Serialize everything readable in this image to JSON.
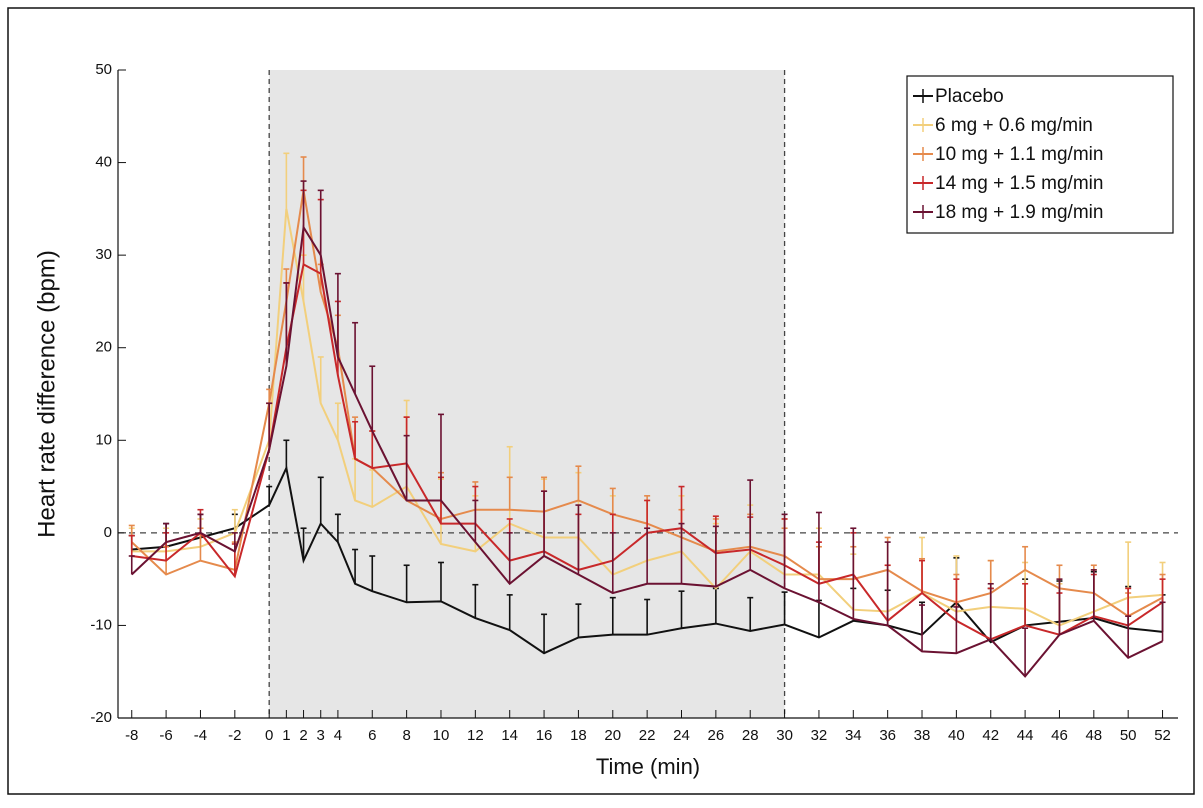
{
  "chart_data": {
    "type": "line",
    "x_label": "Time (min)",
    "y_label": "Heart rate difference (bpm)",
    "x": [
      -8,
      -6,
      -4,
      -2,
      0,
      1,
      2,
      3,
      4,
      5,
      6,
      8,
      10,
      12,
      14,
      16,
      18,
      20,
      22,
      24,
      26,
      28,
      30,
      32,
      34,
      36,
      38,
      40,
      42,
      44,
      46,
      48,
      50,
      52
    ],
    "xlim": [
      -8.8,
      52.9
    ],
    "xticks": [
      -8,
      -6,
      -4,
      -2,
      0,
      1,
      2,
      3,
      4,
      6,
      8,
      10,
      12,
      14,
      16,
      18,
      20,
      22,
      24,
      26,
      28,
      30,
      32,
      34,
      36,
      38,
      40,
      42,
      44,
      46,
      48,
      50,
      52
    ],
    "ylim": [
      -20,
      50
    ],
    "yticks": [
      -20,
      -10,
      0,
      10,
      20,
      30,
      40,
      50
    ],
    "shaded_region": [
      0,
      30
    ],
    "reference_line_y": 0,
    "legend_position": "upper right",
    "series": [
      {
        "name": "Placebo",
        "color": "#111111",
        "values": [
          -1.8,
          -1.5,
          -0.5,
          0.5,
          3,
          7,
          -3,
          1,
          -1,
          -5.5,
          -6.3,
          -7.5,
          -7.4,
          -9.2,
          -10.5,
          -13,
          -11.3,
          -11,
          -11,
          -10.3,
          -9.8,
          -10.6,
          -9.9,
          -11.3,
          -9.5,
          -10,
          -11,
          -7.5,
          -11.8,
          -10,
          -9.6,
          -9.2,
          -10.3,
          -10.7
        ],
        "errors": [
          1.5,
          2.5,
          2.5,
          1.5,
          2,
          3,
          3.5,
          5,
          3,
          3.7,
          3.8,
          4,
          4.2,
          3.6,
          3.8,
          4.2,
          3.6,
          4,
          3.8,
          4,
          3.8,
          3.6,
          3.5,
          4,
          3.5,
          3.8,
          3.5,
          4.8,
          5.8,
          5,
          4.4,
          5,
          4.5,
          4
        ]
      },
      {
        "name": "6 mg + 0.6 mg/min",
        "color": "#f2cf7c",
        "values": [
          -2,
          -2,
          -1.5,
          0,
          10,
          35,
          25,
          14,
          10,
          3.5,
          2.8,
          5,
          -1.2,
          -2,
          1,
          -0.5,
          -0.5,
          -4.5,
          -3,
          -2,
          -6,
          -2,
          -4.5,
          -4.5,
          -8.3,
          -8.5,
          -6.5,
          -8.5,
          -8,
          -8.2,
          -10,
          -8.5,
          -7,
          -6.7
        ],
        "errors": [
          2.5,
          2.5,
          3,
          2.5,
          4,
          6,
          5,
          5,
          4,
          4.5,
          4,
          9.3,
          7,
          6,
          8.3,
          6.3,
          7,
          8.5,
          6.5,
          6,
          7,
          5,
          6,
          5,
          6,
          5,
          6,
          6,
          5,
          5,
          4.5,
          4.5,
          6,
          3.5
        ]
      },
      {
        "name": "10 mg + 1.1 mg/min",
        "color": "#e58a4c",
        "values": [
          -1,
          -4.5,
          -3,
          -4,
          14,
          25,
          37,
          26,
          20,
          8,
          7,
          3.5,
          1.5,
          2.5,
          2.5,
          2.3,
          3.5,
          2,
          1,
          -0.5,
          -2,
          -1.5,
          -2.5,
          -5,
          -5,
          -4,
          -6.3,
          -7.5,
          -6.5,
          -4,
          -6,
          -6.5,
          -9,
          -7
        ],
        "errors": [
          1.8,
          3,
          3.5,
          3,
          1.5,
          3.5,
          3.6,
          3,
          3.5,
          4.5,
          4,
          9,
          5,
          3,
          3.5,
          3.7,
          3.7,
          2.8,
          3,
          3,
          3.5,
          3.5,
          3,
          3.5,
          3.5,
          3.5,
          3.5,
          3,
          3.5,
          2.5,
          2.5,
          3,
          2.5,
          2.5
        ]
      },
      {
        "name": "14 mg + 1.5 mg/min",
        "color": "#c8282a",
        "values": [
          -2.5,
          -3,
          0,
          -4.7,
          9,
          20,
          29,
          28,
          17,
          8,
          7,
          7.5,
          1,
          1,
          -3,
          -2,
          -4,
          -3,
          0,
          0.5,
          -2.2,
          -1.8,
          -3.5,
          -5.5,
          -4.5,
          -9.5,
          -6.5,
          -9.5,
          -11.5,
          -10,
          -11,
          -9,
          -10,
          -7.5
        ],
        "errors": [
          2.2,
          3,
          2.5,
          3.5,
          5,
          7,
          8,
          8,
          8,
          4,
          4,
          5,
          5,
          4,
          4.5,
          6.5,
          6,
          5,
          3.5,
          4.5,
          4,
          3.5,
          5,
          4.5,
          4.5,
          6,
          3.5,
          4.5,
          5.5,
          4.5,
          4.5,
          4.5,
          4,
          2.5
        ]
      },
      {
        "name": "18 mg + 1.9 mg/min",
        "color": "#6b1232",
        "values": [
          -4.5,
          -1,
          0,
          -2,
          9,
          18,
          33,
          30,
          19,
          15,
          11,
          3.5,
          3.5,
          -1,
          -5.5,
          -2.5,
          -4.5,
          -6.5,
          -5.5,
          -5.5,
          -5.8,
          -4,
          -6,
          -7.5,
          -9.3,
          -10,
          -12.8,
          -13,
          -11.5,
          -15.5,
          -11,
          -9.5,
          -13.5,
          -11.7
        ],
        "errors": [
          2,
          2,
          2,
          2,
          5,
          9,
          5,
          7,
          9,
          7.7,
          7,
          7,
          9.3,
          4.5,
          5.5,
          7,
          7.5,
          6.5,
          6,
          6.5,
          6.5,
          9.7,
          8,
          9.7,
          9.8,
          9,
          5,
          5,
          6,
          5.2,
          6,
          5.5,
          4.5,
          4.2
        ]
      }
    ]
  }
}
